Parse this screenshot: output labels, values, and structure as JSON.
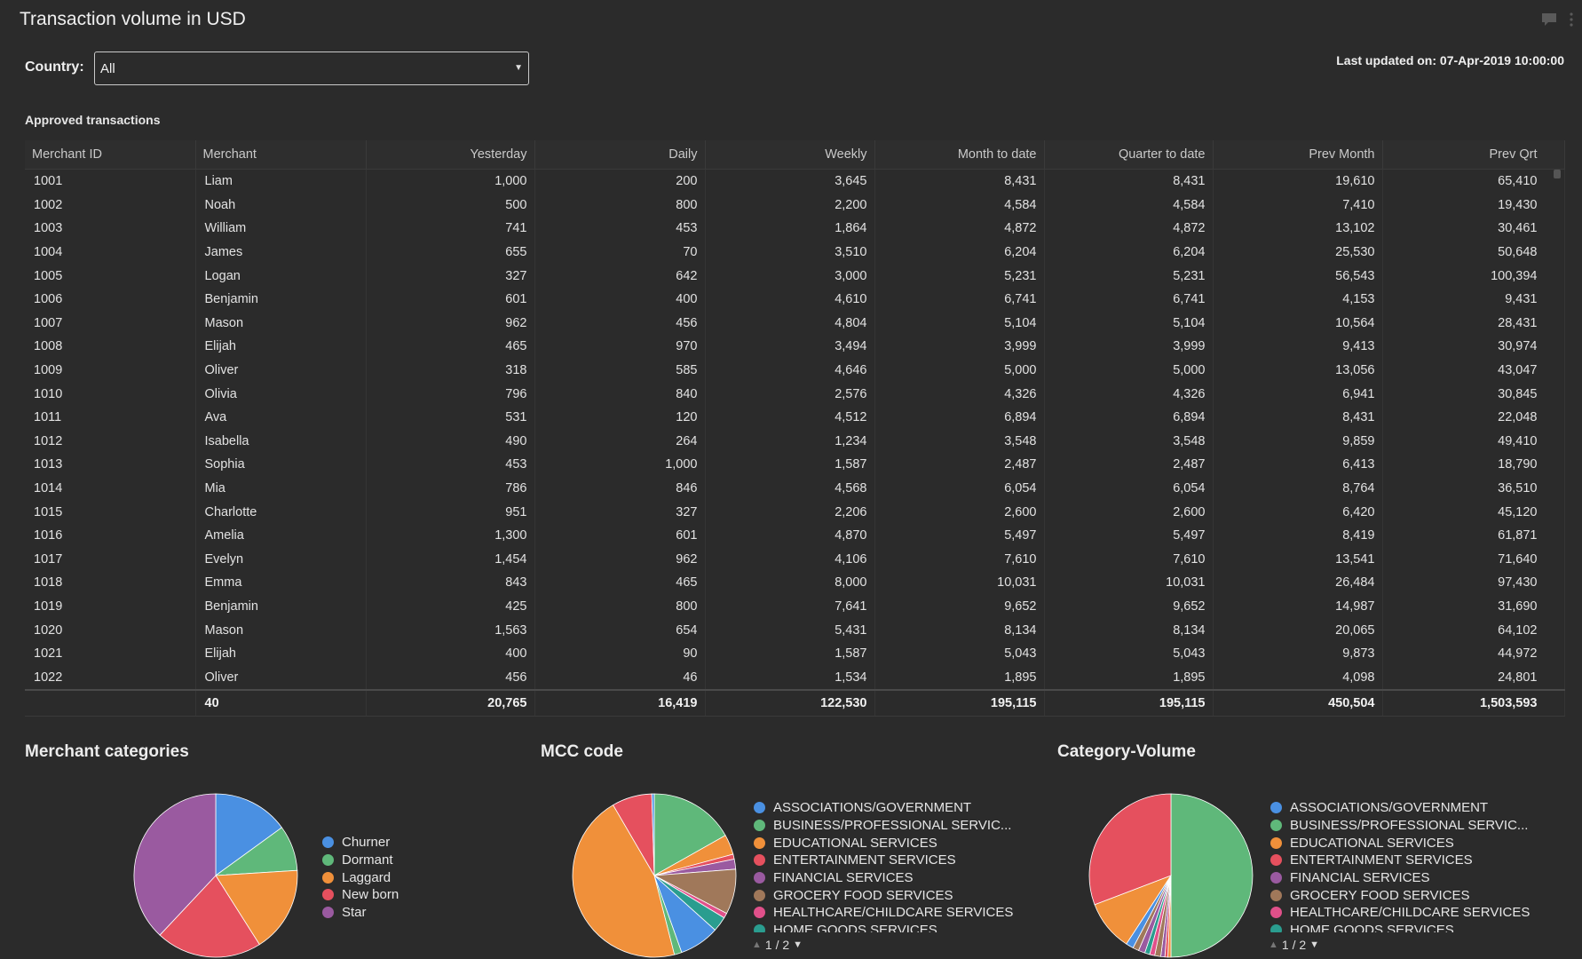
{
  "header": {
    "title": "Transaction volume in USD",
    "last_updated": "Last updated on: 07-Apr-2019 10:00:00"
  },
  "filter": {
    "label": "Country:",
    "value": "All"
  },
  "table": {
    "section_title": "Approved transactions",
    "columns": [
      "Merchant ID",
      "Merchant",
      "Yesterday",
      "Daily",
      "Weekly",
      "Month to date",
      "Quarter to date",
      "Prev Month",
      "Prev Qrt"
    ],
    "rows": [
      [
        "1001",
        "Liam",
        "1,000",
        "200",
        "3,645",
        "8,431",
        "8,431",
        "19,610",
        "65,410"
      ],
      [
        "1002",
        "Noah",
        "500",
        "800",
        "2,200",
        "4,584",
        "4,584",
        "7,410",
        "19,430"
      ],
      [
        "1003",
        "William",
        "741",
        "453",
        "1,864",
        "4,872",
        "4,872",
        "13,102",
        "30,461"
      ],
      [
        "1004",
        "James",
        "655",
        "70",
        "3,510",
        "6,204",
        "6,204",
        "25,530",
        "50,648"
      ],
      [
        "1005",
        "Logan",
        "327",
        "642",
        "3,000",
        "5,231",
        "5,231",
        "56,543",
        "100,394"
      ],
      [
        "1006",
        "Benjamin",
        "601",
        "400",
        "4,610",
        "6,741",
        "6,741",
        "4,153",
        "9,431"
      ],
      [
        "1007",
        "Mason",
        "962",
        "456",
        "4,804",
        "5,104",
        "5,104",
        "10,564",
        "28,431"
      ],
      [
        "1008",
        "Elijah",
        "465",
        "970",
        "3,494",
        "3,999",
        "3,999",
        "9,413",
        "30,974"
      ],
      [
        "1009",
        "Oliver",
        "318",
        "585",
        "4,646",
        "5,000",
        "5,000",
        "13,056",
        "43,047"
      ],
      [
        "1010",
        "Olivia",
        "796",
        "840",
        "2,576",
        "4,326",
        "4,326",
        "6,941",
        "30,845"
      ],
      [
        "1011",
        "Ava",
        "531",
        "120",
        "4,512",
        "6,894",
        "6,894",
        "8,431",
        "22,048"
      ],
      [
        "1012",
        "Isabella",
        "490",
        "264",
        "1,234",
        "3,548",
        "3,548",
        "9,859",
        "49,410"
      ],
      [
        "1013",
        "Sophia",
        "453",
        "1,000",
        "1,587",
        "2,487",
        "2,487",
        "6,413",
        "18,790"
      ],
      [
        "1014",
        "Mia",
        "786",
        "846",
        "4,568",
        "6,054",
        "6,054",
        "8,764",
        "36,510"
      ],
      [
        "1015",
        "Charlotte",
        "951",
        "327",
        "2,206",
        "2,600",
        "2,600",
        "6,420",
        "45,120"
      ],
      [
        "1016",
        "Amelia",
        "1,300",
        "601",
        "4,870",
        "5,497",
        "5,497",
        "8,419",
        "61,871"
      ],
      [
        "1017",
        "Evelyn",
        "1,454",
        "962",
        "4,106",
        "7,610",
        "7,610",
        "13,541",
        "71,640"
      ],
      [
        "1018",
        "Emma",
        "843",
        "465",
        "8,000",
        "10,031",
        "10,031",
        "26,484",
        "97,430"
      ],
      [
        "1019",
        "Benjamin",
        "425",
        "800",
        "7,641",
        "9,652",
        "9,652",
        "14,987",
        "31,690"
      ],
      [
        "1020",
        "Mason",
        "1,563",
        "654",
        "5,431",
        "8,134",
        "8,134",
        "20,065",
        "64,102"
      ],
      [
        "1021",
        "Elijah",
        "400",
        "90",
        "1,587",
        "5,043",
        "5,043",
        "9,873",
        "44,972"
      ],
      [
        "1022",
        "Oliver",
        "456",
        "46",
        "1,534",
        "1,895",
        "1,895",
        "4,098",
        "24,801"
      ]
    ],
    "totals": [
      "",
      "40",
      "20,765",
      "16,419",
      "122,530",
      "195,115",
      "195,115",
      "450,504",
      "1,503,593"
    ]
  },
  "colors": {
    "blue": "#4a90e2",
    "green": "#5fb87a",
    "orange": "#f0903a",
    "red": "#e5505e",
    "purple": "#9a5aa0",
    "brown": "#a0785a",
    "pink": "#e0508a",
    "teal": "#2a9d8f"
  },
  "charts": {
    "merchant_categories": {
      "title": "Merchant categories"
    },
    "mcc_code": {
      "title": "MCC code",
      "pager": "1 / 2"
    },
    "category_volume": {
      "title": "Category-Volume",
      "pager": "1 / 2"
    }
  },
  "chart_data": [
    {
      "type": "pie",
      "title": "Merchant categories",
      "labels": [
        "Churner",
        "Dormant",
        "Laggard",
        "New born",
        "Star"
      ],
      "values": [
        15,
        9,
        17,
        21,
        38
      ],
      "colors": [
        "#4a90e2",
        "#5fb87a",
        "#f0903a",
        "#e5505e",
        "#9a5aa0"
      ],
      "legend": "right"
    },
    {
      "type": "pie",
      "title": "MCC code",
      "labels": [
        "ASSOCIATIONS/GOVERNMENT",
        "BUSINESS/PROFESSIONAL SERVIC...",
        "EDUCATIONAL SERVICES",
        "ENTERTAINMENT SERVICES",
        "FINANCIAL SERVICES",
        "GROCERY FOOD SERVICES",
        "HEALTHCARE/CHILDCARE SERVICES",
        "HOME GOODS SERVICES"
      ],
      "slices": [
        {
          "label": "BUSINESS/PROFESSIONAL SERVIC...",
          "value": 17,
          "color": "#5fb87a"
        },
        {
          "label": "EDUCATIONAL SERVICES",
          "value": 4,
          "color": "#f0903a"
        },
        {
          "label": "ENTERTAINMENT SERVICES",
          "value": 1,
          "color": "#e5505e"
        },
        {
          "label": "FINANCIAL SERVICES",
          "value": 2,
          "color": "#9a5aa0"
        },
        {
          "label": "GROCERY FOOD SERVICES",
          "value": 9,
          "color": "#a0785a"
        },
        {
          "label": "HEALTHCARE/CHILDCARE SERVICES",
          "value": 1,
          "color": "#e0508a"
        },
        {
          "label": "HOME GOODS SERVICES",
          "value": 3,
          "color": "#2a9d8f"
        },
        {
          "label": "ASSOCIATIONS/GOVERNMENT",
          "value": 8,
          "color": "#4a90e2"
        },
        {
          "label": "other",
          "value": 1.5,
          "color": "#5fb87a"
        },
        {
          "label": "other",
          "value": 46,
          "color": "#f0903a"
        },
        {
          "label": "other",
          "value": 8,
          "color": "#e5505e"
        },
        {
          "label": "other",
          "value": 0.5,
          "color": "#4a90e2"
        }
      ],
      "legend": "right"
    },
    {
      "type": "pie",
      "title": "Category-Volume",
      "labels": [
        "ASSOCIATIONS/GOVERNMENT",
        "BUSINESS/PROFESSIONAL SERVIC...",
        "EDUCATIONAL SERVICES",
        "ENTERTAINMENT SERVICES",
        "FINANCIAL SERVICES",
        "GROCERY FOOD SERVICES",
        "HEALTHCARE/CHILDCARE SERVICES",
        "HOME GOODS SERVICES"
      ],
      "slices": [
        {
          "label": "BUSINESS/PROFESSIONAL SERVIC...",
          "value": 50,
          "color": "#5fb87a"
        },
        {
          "label": "other",
          "value": 0.6,
          "color": "#f0903a"
        },
        {
          "label": "other",
          "value": 0.6,
          "color": "#e5505e"
        },
        {
          "label": "other",
          "value": 0.8,
          "color": "#9a5aa0"
        },
        {
          "label": "other",
          "value": 1.2,
          "color": "#a0785a"
        },
        {
          "label": "other",
          "value": 1.0,
          "color": "#e0508a"
        },
        {
          "label": "other",
          "value": 1.0,
          "color": "#2a9d8f"
        },
        {
          "label": "other",
          "value": 1.3,
          "color": "#9a5aa0"
        },
        {
          "label": "other",
          "value": 1.2,
          "color": "#a0785a"
        },
        {
          "label": "other",
          "value": 1.5,
          "color": "#4a90e2"
        },
        {
          "label": "EDUCATIONAL SERVICES",
          "value": 10,
          "color": "#f0903a"
        },
        {
          "label": "ENTERTAINMENT SERVICES",
          "value": 30.8,
          "color": "#e5505e"
        }
      ],
      "legend": "right"
    }
  ]
}
